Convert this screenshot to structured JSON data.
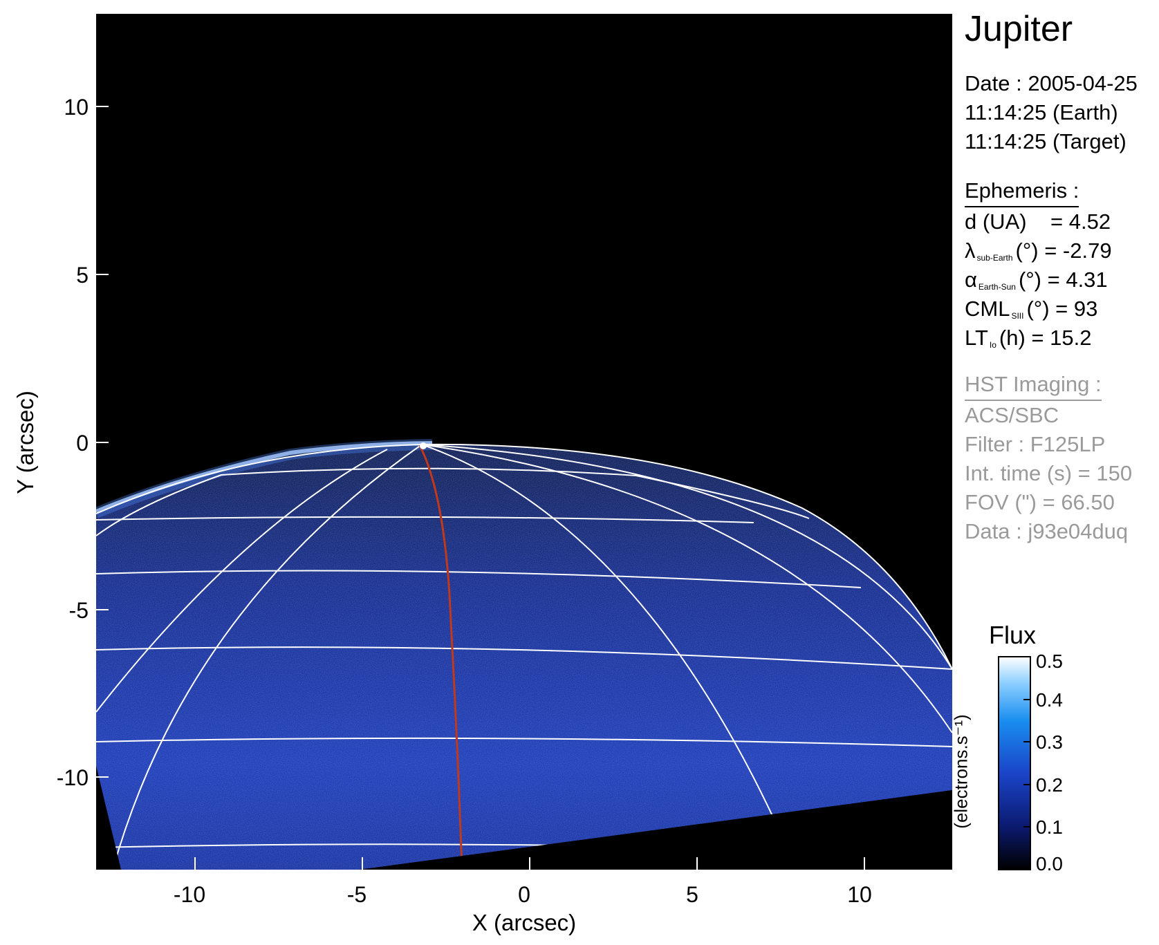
{
  "figure": {
    "planet": "Jupiter",
    "date_lines": [
      "Date : 2005-04-25",
      "11:14:25 (Earth)",
      "11:14:25 (Target)"
    ],
    "ephemeris": {
      "heading": "Ephemeris :",
      "d_label": "d (UA)",
      "d_value": "= 4.52",
      "lambda_symbol": "λ",
      "lambda_sub": "sub-Earth",
      "lambda_value": "(°) = -2.79",
      "alpha_symbol": "α",
      "alpha_sub": "Earth-Sun",
      "alpha_value": "(°) = 4.31",
      "cml_symbol": "CML",
      "cml_sub": "SIII",
      "cml_value": "(°) = 93",
      "lt_symbol": "LT",
      "lt_sub": "Io",
      "lt_value": "(h) = 15.2"
    },
    "imaging": {
      "heading": "HST Imaging :",
      "instrument": "ACS/SBC",
      "filter": "Filter : F125LP",
      "int_time": "Int. time (s) = 150",
      "fov": "FOV (\") = 66.50",
      "data": "Data : j93e04duq"
    },
    "colorbar": {
      "title": "Flux",
      "unit": "(electrons.s⁻¹)",
      "ticks": [
        0.0,
        0.1,
        0.2,
        0.3,
        0.4,
        0.5
      ],
      "tick_labels": [
        "0.0",
        "0.1",
        "0.2",
        "0.3",
        "0.4",
        "0.5"
      ],
      "range": [
        0,
        0.5
      ]
    },
    "axes": {
      "xlabel": "X (arcsec)",
      "ylabel": "Y (arcsec)",
      "xlim": [
        -12.7,
        12.8
      ],
      "ylim": [
        -12.7,
        12.8
      ],
      "xticks": [
        -10,
        -5,
        0,
        5,
        10
      ],
      "yticks": [
        -10,
        -5,
        0,
        5,
        10
      ]
    },
    "colors": {
      "background": "#000000",
      "disk_dark": "#0a1a6e",
      "disk_light": "#1c3fc0",
      "grid": "#ffffff",
      "io_footprint": "#c0391a",
      "aurora": "#d8eaff"
    }
  }
}
